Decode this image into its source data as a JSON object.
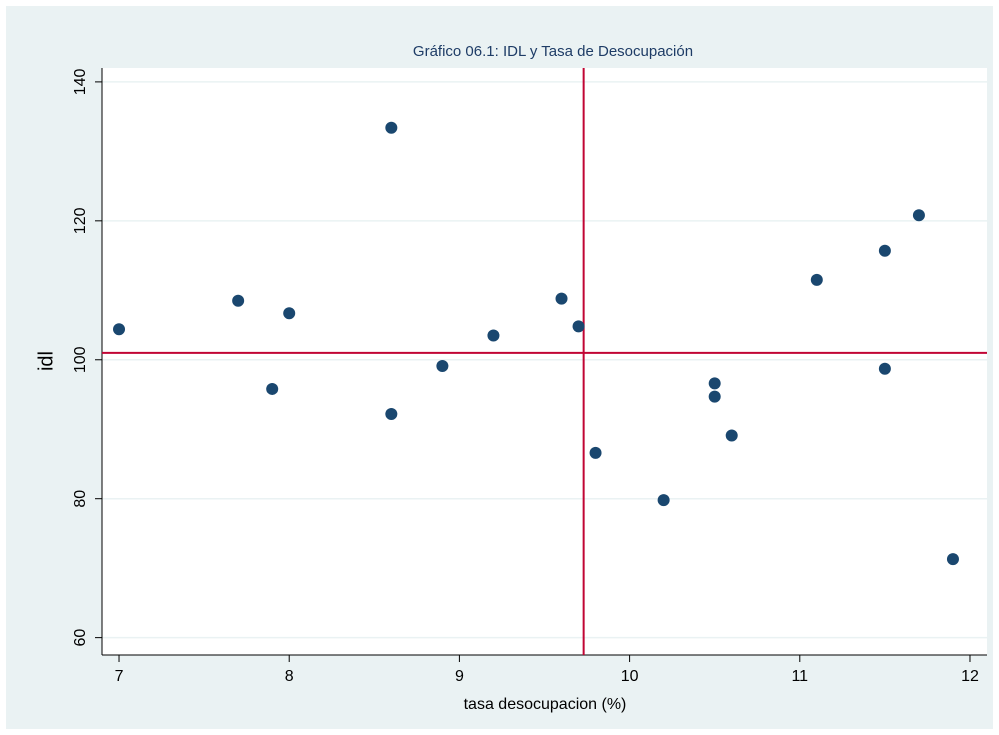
{
  "chart_data": {
    "type": "scatter",
    "title": "Gráfico 06.1: IDL y Tasa de Desocupación",
    "x_label": "tasa desocupacion (%)",
    "y_label": "idl",
    "x": [
      7,
      7.7,
      8.0,
      7.9,
      8.6,
      8.6,
      8.9,
      9.2,
      9.6,
      9.7,
      9.8,
      10.2,
      10.5,
      10.5,
      10.6,
      11.1,
      11.5,
      11.5,
      11.7,
      11.9
    ],
    "values": [
      104.4,
      108.5,
      106.7,
      95.8,
      133.4,
      92.2,
      99.1,
      103.5,
      108.8,
      104.8,
      86.6,
      79.8,
      96.6,
      94.7,
      89.1,
      111.5,
      115.7,
      98.7,
      120.8,
      71.3
    ],
    "color": "#1a476f",
    "xlim": [
      6.9,
      12.1
    ],
    "ylim": [
      57.5,
      142
    ],
    "xticks": [
      7,
      8,
      9,
      10,
      11,
      12
    ],
    "yticks": [
      60,
      80,
      100,
      120,
      140
    ],
    "grid": true,
    "xline": 9.73,
    "yline": 101,
    "refline_color": "#c10534"
  }
}
